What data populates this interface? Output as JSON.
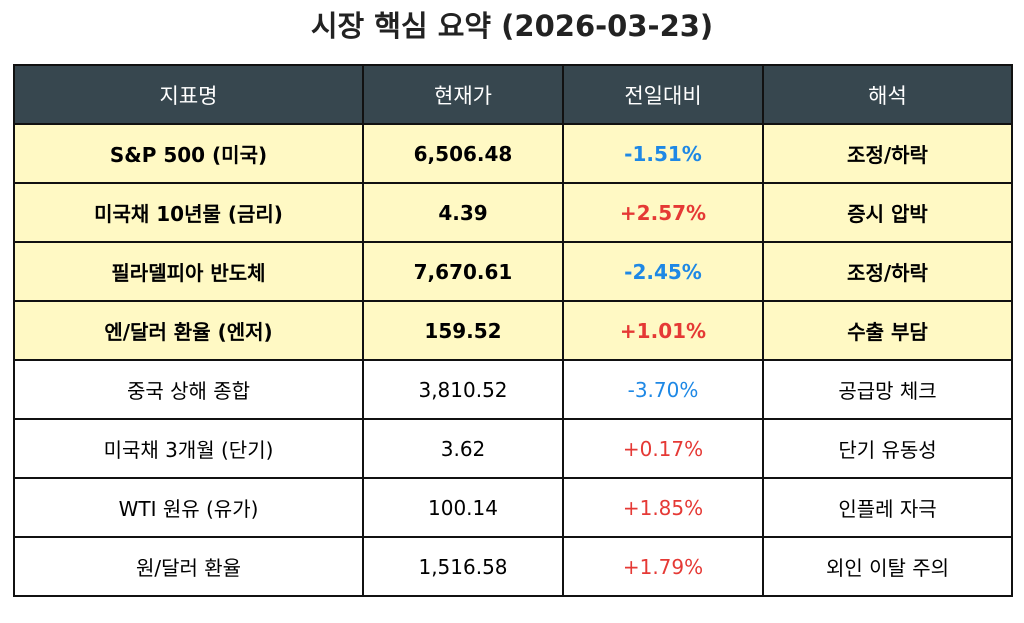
{
  "title": "시장 핵심 요약 (2026-03-23)",
  "colors": {
    "header_bg": "#37474f",
    "highlight_bg": "#fff9c4",
    "negative": "#1e88e5",
    "positive": "#e53935"
  },
  "columns": [
    "지표명",
    "현재가",
    "전일대비",
    "해석"
  ],
  "rows": [
    {
      "name": "S&P 500 (미국)",
      "price": "6,506.48",
      "change": "-1.51%",
      "note": "조정/하락",
      "highlight": true
    },
    {
      "name": "미국채 10년물 (금리)",
      "price": "4.39",
      "change": "+2.57%",
      "note": "증시 압박",
      "highlight": true
    },
    {
      "name": "필라델피아 반도체",
      "price": "7,670.61",
      "change": "-2.45%",
      "note": "조정/하락",
      "highlight": true
    },
    {
      "name": "엔/달러 환율 (엔저)",
      "price": "159.52",
      "change": "+1.01%",
      "note": "수출 부담",
      "highlight": true
    },
    {
      "name": "중국 상해 종합",
      "price": "3,810.52",
      "change": "-3.70%",
      "note": "공급망 체크",
      "highlight": false
    },
    {
      "name": "미국채 3개월 (단기)",
      "price": "3.62",
      "change": "+0.17%",
      "note": "단기 유동성",
      "highlight": false
    },
    {
      "name": "WTI 원유 (유가)",
      "price": "100.14",
      "change": "+1.85%",
      "note": "인플레 자극",
      "highlight": false
    },
    {
      "name": "원/달러 환율",
      "price": "1,516.58",
      "change": "+1.79%",
      "note": "외인 이탈 주의",
      "highlight": false
    }
  ]
}
